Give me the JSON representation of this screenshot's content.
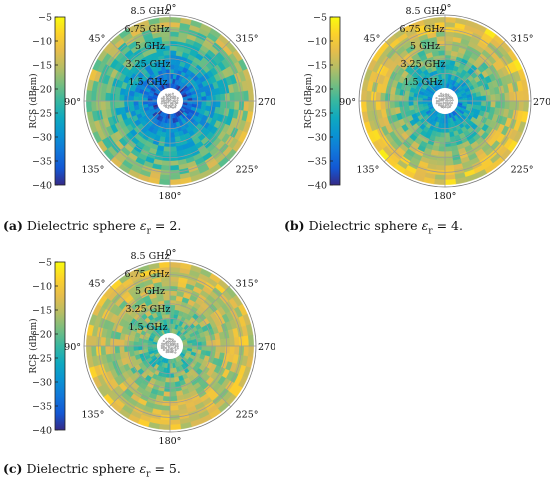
{
  "chart_data": [
    {
      "type": "heatmap",
      "projection": "polar",
      "colorbar": {
        "label": "RCS (dBsm)",
        "ticks": [
          -5,
          -10,
          -15,
          -20,
          -25,
          -30,
          -35,
          -40
        ],
        "range": [
          -40,
          -5
        ],
        "colormap": "parula"
      },
      "radial_labels": [
        "8.5 GHz",
        "6.75 GHz",
        "5 GHz",
        "3.25 GHz",
        "1.5 GHz"
      ],
      "angle_labels": [
        "0°",
        "45°",
        "90°",
        "135°",
        "180°",
        "225°",
        "270°",
        "315°"
      ],
      "caption": {
        "label": "(a)",
        "text": "Dielectric sphere ",
        "symbol": "ε",
        "subscript": "r",
        "equation": " = 2."
      },
      "field": {
        "inner_level": -36,
        "outer_level": -16,
        "variation": 5
      }
    },
    {
      "type": "heatmap",
      "projection": "polar",
      "colorbar": {
        "label": "RCS (dBsm)",
        "ticks": [
          -5,
          -10,
          -15,
          -20,
          -25,
          -30,
          -35,
          -40
        ],
        "range": [
          -40,
          -5
        ],
        "colormap": "parula"
      },
      "radial_labels": [
        "8.5 GHz",
        "6.75 GHz",
        "5 GHz",
        "3.25 GHz",
        "1.5 GHz"
      ],
      "angle_labels": [
        "0°",
        "45°",
        "90°",
        "135°",
        "180°",
        "225°",
        "270°",
        "315°"
      ],
      "caption": {
        "label": "(b)",
        "text": "Dielectric sphere ",
        "symbol": "ε",
        "subscript": "r",
        "equation": " = 4."
      },
      "field": {
        "inner_level": -30,
        "outer_level": -11,
        "variation": 5
      }
    },
    {
      "type": "heatmap",
      "projection": "polar",
      "colorbar": {
        "label": "RCS (dBsm)",
        "ticks": [
          -5,
          -10,
          -15,
          -20,
          -25,
          -30,
          -35,
          -40
        ],
        "range": [
          -40,
          -5
        ],
        "colormap": "parula"
      },
      "radial_labels": [
        "8.5 GHz",
        "6.75 GHz",
        "5 GHz",
        "3.25 GHz",
        "1.5 GHz"
      ],
      "angle_labels": [
        "0°",
        "45°",
        "90°",
        "135°",
        "180°",
        "225°",
        "270°",
        "315°"
      ],
      "caption": {
        "label": "(c)",
        "text": "Dielectric sphere ",
        "symbol": "ε",
        "subscript": "r",
        "equation": " = 5."
      },
      "field": {
        "inner_level": -22,
        "outer_level": -13,
        "variation": 5
      }
    }
  ]
}
